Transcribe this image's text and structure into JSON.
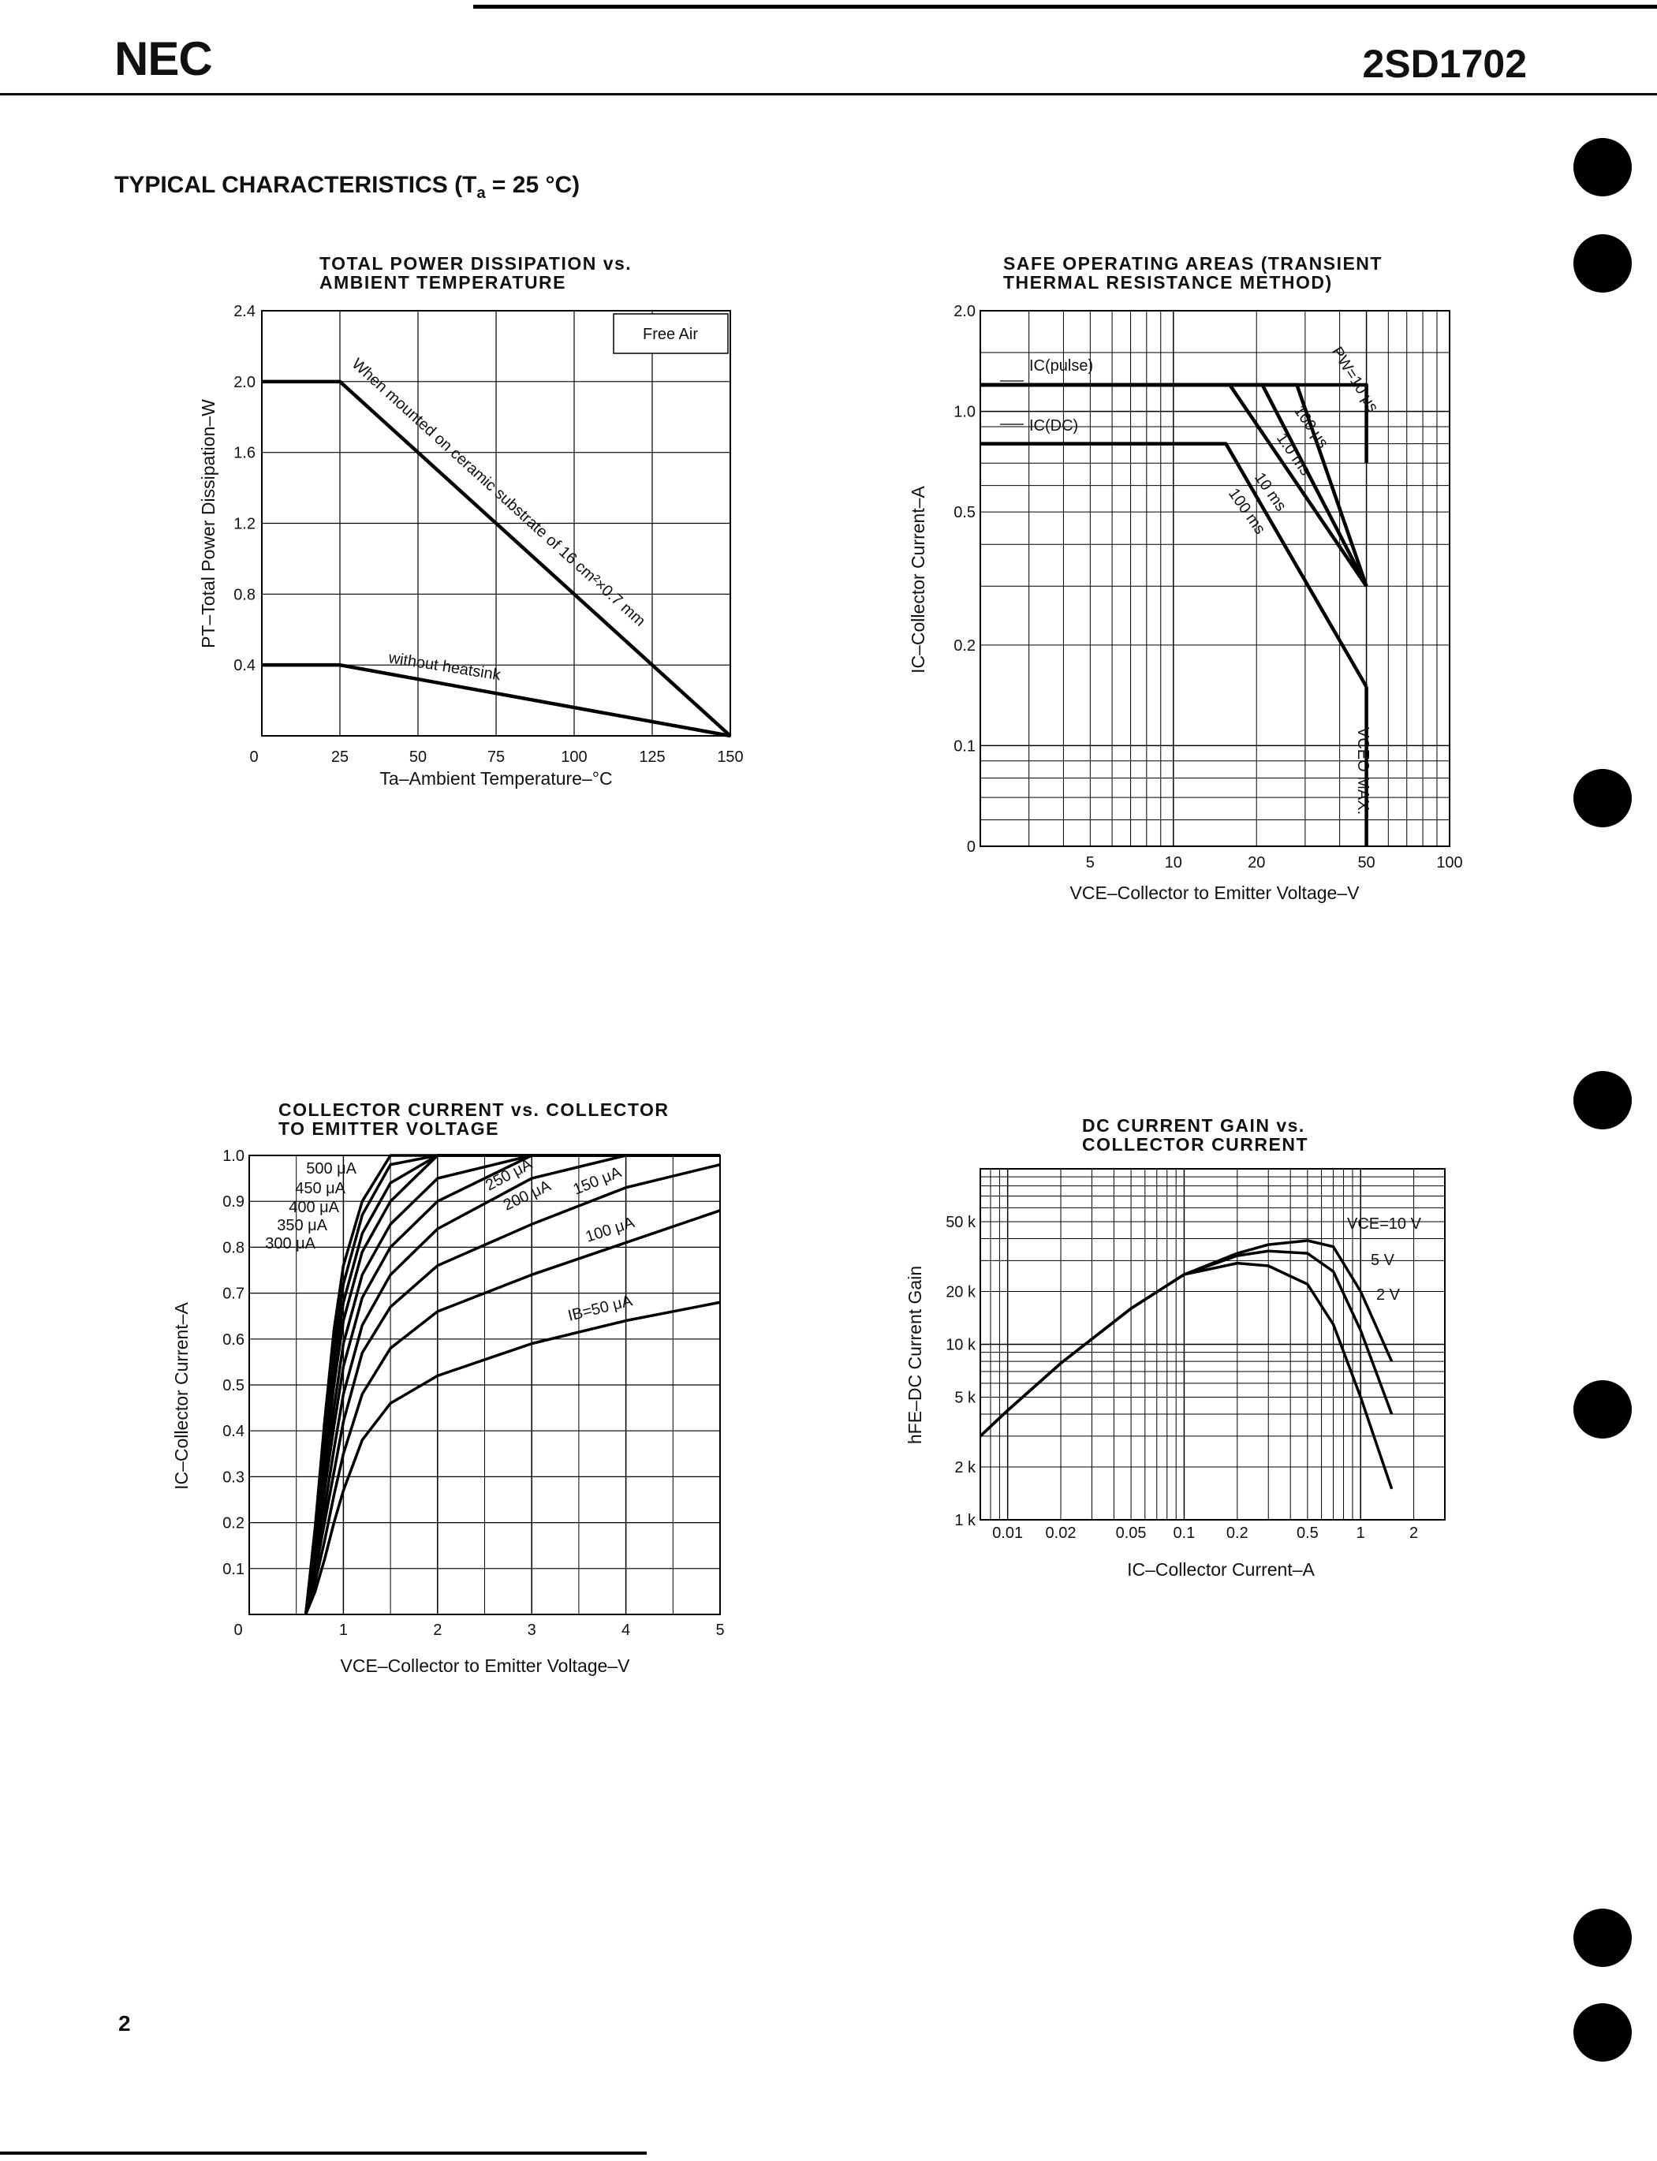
{
  "header": {
    "brand": "NEC",
    "part_number": "2SD1702"
  },
  "section_title": {
    "main": "TYPICAL CHARACTERISTICS (T",
    "sub": "a",
    "rest": " = 25 °C)"
  },
  "page_number": "2",
  "charts": {
    "power": {
      "title_line1": "TOTAL POWER DISSIPATION vs.",
      "title_line2": "AMBIENT TEMPERATURE",
      "xlabel": "Ta–Ambient Temperature–°C",
      "ylabel": "PT–Total Power Dissipation–W",
      "x_ticks": [
        "0",
        "25",
        "50",
        "75",
        "100",
        "125",
        "150"
      ],
      "y_ticks": [
        "0.4",
        "0.8",
        "1.2",
        "1.6",
        "2.0",
        "2.4"
      ],
      "legend": "Free Air",
      "label_mounted": "When mounted on ceramic substrate of 16 cm²×0.7 mm",
      "label_heatsink": "without heatsink"
    },
    "soa": {
      "title_line1": "SAFE OPERATING AREAS (TRANSIENT",
      "title_line2": "THERMAL RESISTANCE METHOD)",
      "xlabel": "VCE–Collector to Emitter Voltage–V",
      "ylabel": "IC–Collector Current–A",
      "x_ticks": [
        "5",
        "10",
        "20",
        "50",
        "100"
      ],
      "y_ticks": [
        "0",
        "0.1",
        "0.2",
        "0.5",
        "1.0",
        "2.0"
      ],
      "label_pulse": "IC(pulse)",
      "label_dc": "IC(DC)",
      "label_pw": "PW=10 μs",
      "label_100us": "100 μs",
      "label_1ms": "1.0 ms",
      "label_10ms": "10 ms",
      "label_100ms": "100 ms",
      "label_vceo": "VCEO MAX."
    },
    "ic_vce": {
      "title_line1": "COLLECTOR CURRENT vs. COLLECTOR",
      "title_line2": "TO EMITTER VOLTAGE",
      "xlabel": "VCE–Collector to Emitter Voltage–V",
      "ylabel": "IC–Collector Current–A",
      "x_ticks": [
        "0",
        "1",
        "2",
        "3",
        "4",
        "5"
      ],
      "y_ticks": [
        "0.1",
        "0.2",
        "0.3",
        "0.4",
        "0.5",
        "0.6",
        "0.7",
        "0.8",
        "0.9",
        "1.0"
      ],
      "curve_labels": [
        "500 μA",
        "450 μA",
        "400 μA",
        "350 μA",
        "300 μA",
        "250 μA",
        "200 μA",
        "150 μA",
        "100 μA",
        "IB=50 μA"
      ]
    },
    "hfe": {
      "title_line1": "DC CURRENT GAIN vs.",
      "title_line2": "COLLECTOR CURRENT",
      "xlabel": "IC–Collector Current–A",
      "ylabel": "hFE–DC Current Gain",
      "x_ticks": [
        "0.01",
        "0.02",
        "0.05",
        "0.1",
        "0.2",
        "0.5",
        "1",
        "2"
      ],
      "y_ticks": [
        "1 k",
        "2 k",
        "5 k",
        "10 k",
        "20 k",
        "50 k"
      ],
      "curve_labels": [
        "VCE=10 V",
        "5 V",
        "2 V"
      ]
    }
  },
  "chart_data": [
    {
      "type": "line",
      "title": "TOTAL POWER DISSIPATION vs. AMBIENT TEMPERATURE",
      "xlabel": "Ta–Ambient Temperature–°C",
      "ylabel": "PT–Total Power Dissipation–W",
      "xlim": [
        0,
        150
      ],
      "ylim": [
        0,
        2.4
      ],
      "grid": true,
      "series": [
        {
          "name": "When mounted on ceramic substrate of 16 cm²×0.7 mm",
          "x": [
            0,
            25,
            150
          ],
          "y": [
            2.0,
            2.0,
            0
          ]
        },
        {
          "name": "without heatsink",
          "x": [
            0,
            25,
            150
          ],
          "y": [
            0.4,
            0.4,
            0
          ]
        }
      ]
    },
    {
      "type": "line",
      "title": "SAFE OPERATING AREAS (TRANSIENT THERMAL RESISTANCE METHOD)",
      "xlabel": "VCE–Collector to Emitter Voltage–V",
      "ylabel": "IC–Collector Current–A",
      "xlim": [
        2,
        100
      ],
      "ylim": [
        0.05,
        2.0
      ],
      "scale": "log-log",
      "grid": true,
      "series": [
        {
          "name": "PW=10 μs",
          "x": [
            2,
            50,
            50
          ],
          "y": [
            1.2,
            1.2,
            0.7
          ]
        },
        {
          "name": "100 μs",
          "x": [
            2,
            16,
            50
          ],
          "y": [
            1.2,
            1.2,
            0.3
          ]
        },
        {
          "name": "1.0 ms",
          "x": [
            2,
            21,
            50
          ],
          "y": [
            1.2,
            1.2,
            0.3
          ]
        },
        {
          "name": "10 ms",
          "x": [
            2,
            28,
            50
          ],
          "y": [
            1.2,
            1.2,
            0.3
          ]
        },
        {
          "name": "IC(DC)",
          "x": [
            2,
            15.5,
            50
          ],
          "y": [
            0.8,
            0.8,
            0.15
          ]
        },
        {
          "name": "VCEO MAX.",
          "x": [
            50,
            50
          ],
          "y": [
            0.15,
            0.05
          ]
        }
      ]
    },
    {
      "type": "line",
      "title": "COLLECTOR CURRENT vs. COLLECTOR TO EMITTER VOLTAGE",
      "xlabel": "VCE–Collector to Emitter Voltage–V",
      "ylabel": "IC–Collector Current–A",
      "xlim": [
        0,
        5
      ],
      "ylim": [
        0,
        1.0
      ],
      "grid": true,
      "x": [
        0.6,
        0.7,
        0.8,
        0.9,
        1.0,
        1.2,
        1.5,
        2.0,
        3.0,
        4.0,
        5.0
      ],
      "series": [
        {
          "name": "IB=50 μA",
          "values": [
            0.0,
            0.05,
            0.12,
            0.2,
            0.27,
            0.38,
            0.46,
            0.52,
            0.59,
            0.64,
            0.68
          ]
        },
        {
          "name": "100 μA",
          "values": [
            0.0,
            0.07,
            0.16,
            0.26,
            0.35,
            0.48,
            0.58,
            0.66,
            0.74,
            0.81,
            0.88
          ]
        },
        {
          "name": "150 μA",
          "values": [
            0.0,
            0.09,
            0.2,
            0.31,
            0.42,
            0.57,
            0.67,
            0.76,
            0.85,
            0.93,
            0.98
          ]
        },
        {
          "name": "200 μA",
          "values": [
            0.0,
            0.1,
            0.23,
            0.36,
            0.48,
            0.63,
            0.74,
            0.84,
            0.95,
            1.0,
            1.0
          ]
        },
        {
          "name": "250 μA",
          "values": [
            0.0,
            0.12,
            0.27,
            0.41,
            0.54,
            0.69,
            0.8,
            0.9,
            1.0,
            1.0,
            1.0
          ]
        },
        {
          "name": "300 μA",
          "values": [
            0.0,
            0.13,
            0.3,
            0.45,
            0.59,
            0.74,
            0.85,
            0.95,
            1.0,
            1.0,
            1.0
          ]
        },
        {
          "name": "350 μA",
          "values": [
            0.0,
            0.15,
            0.33,
            0.5,
            0.64,
            0.79,
            0.9,
            1.0,
            1.0,
            1.0,
            1.0
          ]
        },
        {
          "name": "400 μA",
          "values": [
            0.0,
            0.16,
            0.36,
            0.54,
            0.68,
            0.83,
            0.94,
            1.0,
            1.0,
            1.0,
            1.0
          ]
        },
        {
          "name": "450 μA",
          "values": [
            0.0,
            0.18,
            0.39,
            0.58,
            0.72,
            0.87,
            0.98,
            1.0,
            1.0,
            1.0,
            1.0
          ]
        },
        {
          "name": "500 μA",
          "values": [
            0.0,
            0.19,
            0.42,
            0.62,
            0.76,
            0.9,
            1.0,
            1.0,
            1.0,
            1.0,
            1.0
          ]
        }
      ]
    },
    {
      "type": "line",
      "title": "DC CURRENT GAIN vs. COLLECTOR CURRENT",
      "xlabel": "IC–Collector Current–A",
      "ylabel": "hFE–DC Current Gain",
      "xlim": [
        0.007,
        3
      ],
      "ylim": [
        1000,
        100000
      ],
      "scale": "log-log",
      "grid": true,
      "x": [
        0.007,
        0.01,
        0.02,
        0.05,
        0.1,
        0.2,
        0.3,
        0.5,
        0.7,
        1.0,
        1.5
      ],
      "series": [
        {
          "name": "VCE=10 V",
          "values": [
            3000,
            4200,
            7800,
            16000,
            25000,
            33000,
            37000,
            39000,
            36000,
            20000,
            8000
          ]
        },
        {
          "name": "5 V",
          "values": [
            3000,
            4200,
            7800,
            16000,
            25000,
            32000,
            34000,
            33000,
            26000,
            12000,
            4000
          ]
        },
        {
          "name": "2 V",
          "values": [
            3000,
            4200,
            7800,
            16000,
            25000,
            29000,
            28000,
            22000,
            13000,
            5000,
            1500
          ]
        }
      ]
    }
  ]
}
